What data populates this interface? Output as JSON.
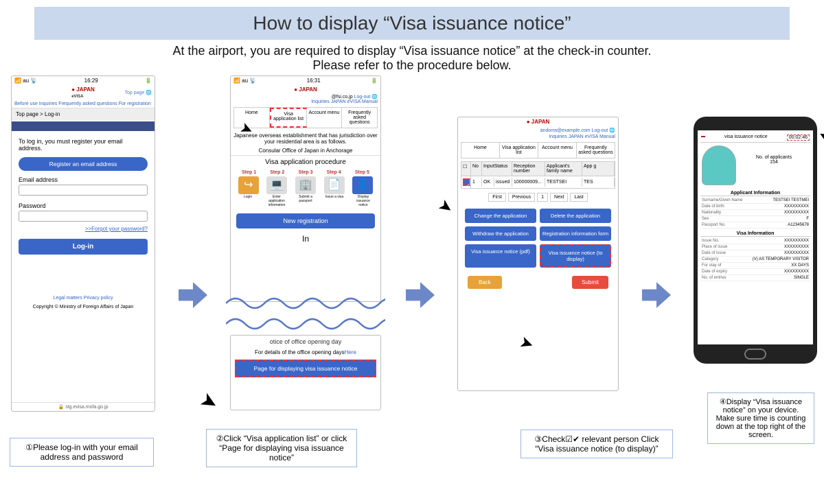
{
  "title": "How to display “Visa issuance notice”",
  "subtitle1": "At the airport, you are required to display “Visa issuance notice” at the check-in counter.",
  "subtitle2": "Please refer to the procedure below.",
  "mock1": {
    "time": "16:29",
    "carrier": "au",
    "logo_en": "JAPAN",
    "logo_sub": "eVISA",
    "top_page": "Top page",
    "nav": "Before use   Inquiries   Frequently asked questions   For registration",
    "breadcrumb": "Top page > Log-in",
    "login_msg": "To log in, you must register your email address.",
    "btn_register": "Register an email address",
    "lbl_email": "Email address",
    "lbl_password": "Password",
    "forgot": ">>Forgot your password?",
    "btn_login": "Log-in",
    "footer": "Legal matters   Privacy policy",
    "copyright": "Copyright © Ministry of Foreign Affairs of Japan",
    "url": "stg.evisa.mofa.go.jp"
  },
  "mock2": {
    "time": "16:31",
    "email": "@fsi.co.jp",
    "logout": "Log-out",
    "links": "Inquiries   JAPAN eVISA Manual",
    "tabs": [
      "Home",
      "Visa application list",
      "Account menu",
      "Frequently asked questions"
    ],
    "txt1": "Japanese overseas establishment that has jurisdiction over your residential area is as follows.",
    "txt2": "Consular Office of Japan in Anchorage",
    "proc_title": "Visa application procedure",
    "steps": [
      "Step 1",
      "Step 2",
      "Step 3",
      "Step 4",
      "Step 5"
    ],
    "step_lbls": [
      "Login",
      "Enter application information",
      "Submit a passport",
      "Issue a visa",
      "Display issuance notice"
    ],
    "btn_new": "New registration"
  },
  "mock2b": {
    "head": "otice of office opening day",
    "sub_pre": "For details of the office opening days",
    "sub_link": "Here",
    "btn": "Page for displaying visa issuance notice"
  },
  "mock3": {
    "email": "andorra@example.com",
    "logout": "Log-out",
    "links": "Inquiries   JAPAN eVISA Manual",
    "tabs": [
      "Home",
      "Visa application list",
      "Account menu",
      "Frequently asked questions"
    ],
    "th": [
      "",
      "No",
      "InputStatus",
      "Reception number",
      "Applicant's family name",
      "App g"
    ],
    "tr": [
      "1",
      "OK",
      "issued",
      "100000009...",
      "TESTSEI",
      "TES"
    ],
    "pager": [
      "First",
      "Previous",
      "1",
      "Next",
      "Last"
    ],
    "btns": [
      "Change the application",
      "Delete the application",
      "Withdraw the application",
      "Registration information form",
      "Visa issuance notice (pdf)",
      "Visa issuance notice (to display)"
    ],
    "back": "Back",
    "submit": "Submit"
  },
  "phone": {
    "title": "visa issuance notice",
    "timer": "00:02:46",
    "applicants_lbl": "No. of applicants",
    "applicants_val": "154",
    "sec1": "Applicant Information",
    "rows1": [
      [
        "Surname/Given Name",
        "TESTSEI TESTMEI"
      ],
      [
        "Date of birth",
        "XXXXXXXXX"
      ],
      [
        "Nationality",
        "XXXXXXXXX"
      ],
      [
        "Sex",
        "F"
      ],
      [
        "Passport No.",
        "A12345678"
      ]
    ],
    "sec2": "Visa Information",
    "rows2": [
      [
        "Issue No.",
        "XXXXXXXXX"
      ],
      [
        "Place of issue",
        "XXXXXXXXX"
      ],
      [
        "Date of issue",
        "XXXXXXXXX"
      ],
      [
        "Category",
        "(V) AS TEMPORARY VISITOR"
      ],
      [
        "For stay of",
        "XX DAYS"
      ],
      [
        "Date of expiry",
        "XXXXXXXXX"
      ],
      [
        "No. of entries",
        "SINGLE"
      ]
    ]
  },
  "captions": {
    "c1": "①Please log-in with your email address and password",
    "c2": "②Click “Visa application list” or click “Page for displaying visa issuance notice”",
    "c3": "③Check☑✔ relevant person Click “Visa issuance notice (to display)”",
    "c4": "④Display “Visa issuance notice” on your device. Make sure time is counting down at the top right of the screen."
  },
  "colors": {
    "blue": "#3a66c8",
    "arrow": "#5a78c4"
  }
}
